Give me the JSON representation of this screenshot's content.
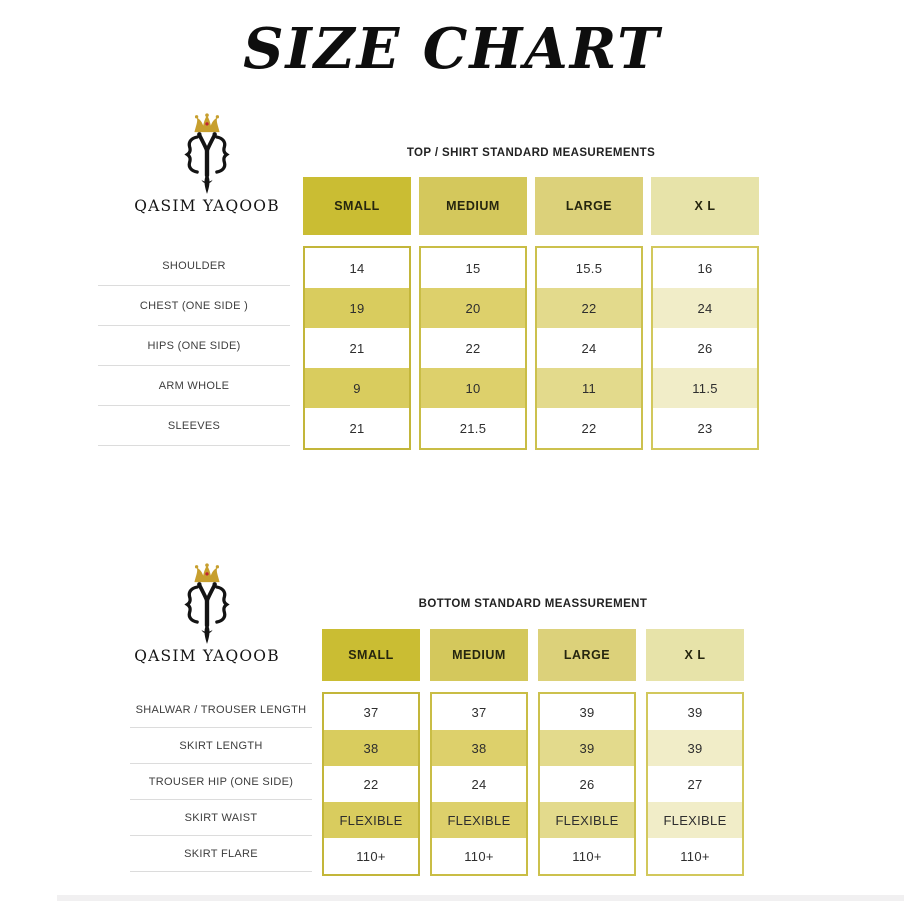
{
  "page": {
    "title": "SIZE CHART"
  },
  "brand": {
    "name": "QASIM YAQOOB",
    "logo_icons": [
      "crown-icon",
      "qy-monogram-icon"
    ]
  },
  "palette": {
    "col_headers": [
      "#cabd33",
      "#d4c85c",
      "#dcd17a",
      "#e7e3a9"
    ],
    "col_cells": [
      "#d9cc5e",
      "#ddd06b",
      "#e3da8c",
      "#f1edc8"
    ],
    "col_borders": [
      "#c3b63a",
      "#c9bd45",
      "#ccc14e",
      "#d2c85c"
    ],
    "crown_gold": "#c79f2e",
    "jewel_red": "#bf2533",
    "monogram_black": "#131313"
  },
  "chart_data": [
    {
      "type": "table",
      "title": "TOP / SHIRT STANDARD MEASUREMENTS",
      "columns": [
        "SMALL",
        "MEDIUM",
        "LARGE",
        "X L"
      ],
      "row_labels": [
        "SHOULDER",
        "CHEST (ONE SIDE )",
        "HIPS (ONE SIDE)",
        "ARM WHOLE",
        "SLEEVES"
      ],
      "series": [
        {
          "name": "SMALL",
          "values": [
            "14",
            "19",
            "21",
            "9",
            "21"
          ]
        },
        {
          "name": "MEDIUM",
          "values": [
            "15",
            "20",
            "22",
            "10",
            "21.5"
          ]
        },
        {
          "name": "LARGE",
          "values": [
            "15.5",
            "22",
            "24",
            "11",
            "22"
          ]
        },
        {
          "name": "X L",
          "values": [
            "16",
            "24",
            "26",
            "11.5",
            "23"
          ]
        }
      ],
      "layout": {
        "shaded_row_indexes": [
          1,
          3
        ],
        "shading": "column color, lighter left-to-right"
      }
    },
    {
      "type": "table",
      "title": "BOTTOM STANDARD MEASSUREMENT",
      "columns": [
        "SMALL",
        "MEDIUM",
        "LARGE",
        "X L"
      ],
      "row_labels": [
        "SHALWAR / TROUSER LENGTH",
        "SKIRT LENGTH",
        "TROUSER HIP (ONE SIDE)",
        "SKIRT WAIST",
        "SKIRT FLARE"
      ],
      "series": [
        {
          "name": "SMALL",
          "values": [
            "37",
            "38",
            "22",
            "FLEXIBLE",
            "110+"
          ]
        },
        {
          "name": "MEDIUM",
          "values": [
            "37",
            "38",
            "24",
            "FLEXIBLE",
            "110+"
          ]
        },
        {
          "name": "LARGE",
          "values": [
            "39",
            "39",
            "26",
            "FLEXIBLE",
            "110+"
          ]
        },
        {
          "name": "X L",
          "values": [
            "39",
            "39",
            "27",
            "FLEXIBLE",
            "110+"
          ]
        }
      ],
      "layout": {
        "shaded_row_indexes": [
          1,
          3
        ],
        "shading": "column color, lighter left-to-right"
      }
    }
  ]
}
